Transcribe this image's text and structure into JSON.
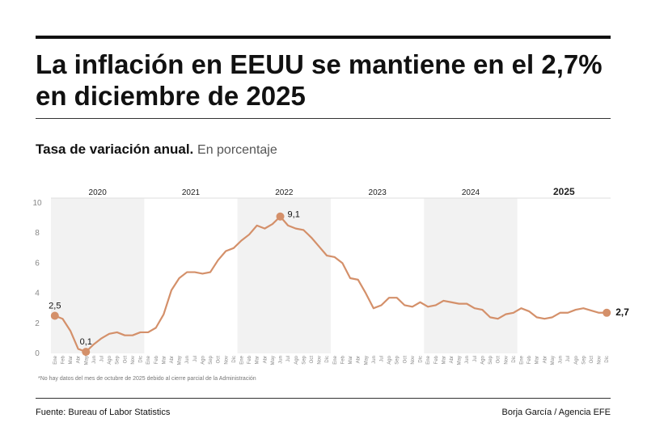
{
  "title": "La inflación en EEUU se mantiene en el 2,7% en diciembre de 2025",
  "subtitle_main": "Tasa de variación anual.",
  "subtitle_unit": "En porcentaje",
  "footnote": "*No hay datos del mes de octubre de 2025 debido al cierre parcial de la Administración",
  "source": "Fuente: Bureau of Labor Statistics",
  "credit": "Borja García / Agencia EFE",
  "colors": {
    "line": "#d4906a",
    "marker": "#d4906a",
    "band": "#f2f2f2",
    "axis_text": "#888888"
  },
  "chart_data": {
    "type": "line",
    "ylim": [
      0,
      10
    ],
    "yticks": [
      "0",
      "2",
      "4",
      "6",
      "8",
      "10"
    ],
    "month_labels": [
      "Ene",
      "Feb",
      "Mar",
      "Abr",
      "May",
      "Jun",
      "Jul",
      "Ago",
      "Sep",
      "Oct",
      "Nov",
      "Dic"
    ],
    "years": [
      {
        "label": "2020",
        "shaded": true,
        "bold": false
      },
      {
        "label": "2021",
        "shaded": false,
        "bold": false
      },
      {
        "label": "2022",
        "shaded": true,
        "bold": false
      },
      {
        "label": "2023",
        "shaded": false,
        "bold": false
      },
      {
        "label": "2024",
        "shaded": true,
        "bold": false
      },
      {
        "label": "2025",
        "shaded": false,
        "bold": true
      }
    ],
    "series": [
      {
        "values": [
          2.5,
          2.3,
          1.5,
          0.3,
          0.1,
          0.6,
          1.0,
          1.3,
          1.4,
          1.2,
          1.2,
          1.4,
          1.4,
          1.7,
          2.6,
          4.2,
          5.0,
          5.4,
          5.4,
          5.3,
          5.4,
          6.2,
          6.8,
          7.0,
          7.5,
          7.9,
          8.5,
          8.3,
          8.6,
          9.1,
          8.5,
          8.3,
          8.2,
          7.7,
          7.1,
          6.5,
          6.4,
          6.0,
          5.0,
          4.9,
          4.0,
          3.0,
          3.2,
          3.7,
          3.7,
          3.2,
          3.1,
          3.4,
          3.1,
          3.2,
          3.5,
          3.4,
          3.3,
          3.3,
          3.0,
          2.9,
          2.4,
          2.3,
          2.6,
          2.7,
          3.0,
          2.8,
          2.4,
          2.3,
          2.4,
          2.7,
          2.7,
          2.9,
          3.0,
          null,
          2.7,
          2.7
        ]
      }
    ],
    "highlights": [
      {
        "index": 0,
        "label": "2,5",
        "position": "above"
      },
      {
        "index": 4,
        "label": "0,1",
        "position": "above"
      },
      {
        "index": 29,
        "label": "9,1",
        "position": "right"
      },
      {
        "index": 71,
        "label": "2,7",
        "position": "right-bold"
      }
    ]
  }
}
